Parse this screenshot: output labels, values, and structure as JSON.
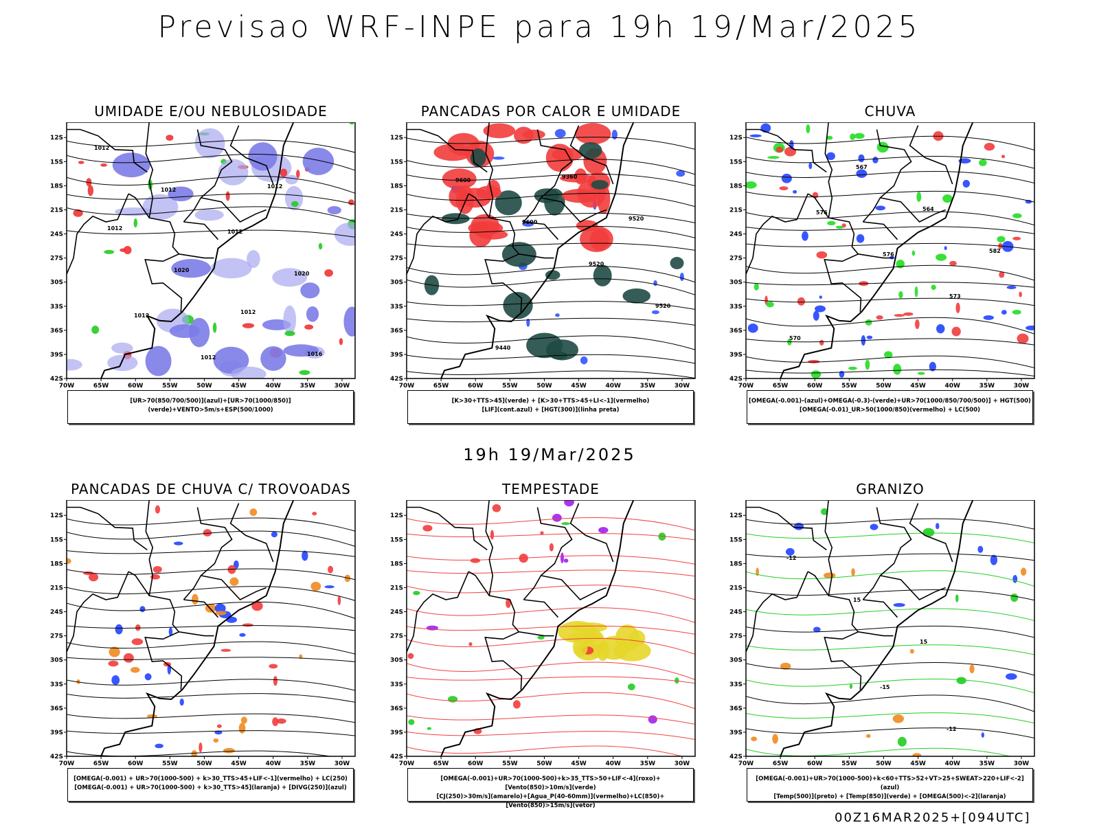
{
  "title": "Previsao WRF-INPE  para 19h 19/Mar/2025",
  "mid_label": "19h 19/Mar/2025",
  "footer": "00Z16MAR2025+[094UTC]",
  "axes": {
    "lat_ticks": [
      "12S",
      "15S",
      "18S",
      "21S",
      "24S",
      "27S",
      "30S",
      "33S",
      "36S",
      "39S",
      "42S"
    ],
    "lat_values": [
      -12,
      -15,
      -18,
      -21,
      -24,
      -27,
      -30,
      -33,
      -36,
      -39,
      -42
    ],
    "lon_ticks": [
      "70W",
      "65W",
      "60W",
      "55W",
      "50W",
      "45W",
      "40W",
      "35W",
      "30W"
    ],
    "lon_values": [
      -70,
      -65,
      -60,
      -55,
      -50,
      -45,
      -40,
      -35,
      -30
    ],
    "lat_range": [
      -42,
      -10.1
    ],
    "lon_range": [
      -70,
      -28.1
    ]
  },
  "panels": [
    {
      "title": "UMIDADE E/OU NEBULOSIDADE",
      "legend": [
        "[UR>70(850/700/500)](azul)+[UR>70(1000/850)](verde)+VENTO>5m/s+ESP(500/1000)"
      ],
      "colors": [
        "#a8a8f0",
        "#7c7ce8",
        "#22cc22",
        "#ee3333"
      ],
      "contour_labels": [
        "1012",
        "1012",
        "1012",
        "1020",
        "1012",
        "1012",
        "1012",
        "1012",
        "1020",
        "1012",
        "1016"
      ]
    },
    {
      "title": "PANCADAS POR CALOR E UMIDADE",
      "legend": [
        "[K>30+TTS>45](verde)  +  [K>30+TTS>45+LI<-1](vermelho)",
        "[LIF](cont.azul)  +  [HGT(300)](linha preta)"
      ],
      "colors": [
        "#f23c3c",
        "#1f4a44",
        "#3355ff"
      ],
      "contour_labels": [
        "9600",
        "9600",
        "9520",
        "9520",
        "9440",
        "9360",
        "9520"
      ]
    },
    {
      "title": "CHUVA",
      "legend": [
        "[OMEGA(-0.001)-(azul)+OMEGA(-0.3)-(verde)+UR>70(1000/850/700/500)]  +  HGT(500)",
        "[OMEGA(-0.01)_UR>50(1000/850)(vermelho)  +  LC(500)"
      ],
      "colors": [
        "#f23c3c",
        "#2244ff",
        "#22dd22"
      ],
      "contour_labels": [
        "576",
        "576",
        "573",
        "570",
        "567",
        "564",
        "582"
      ]
    },
    {
      "title": "PANCADAS DE CHUVA C/ TROVOADAS",
      "legend": [
        "[OMEGA(-0.001)  +  UR>70(1000-500)  +  k>30_TTS>45+LIF<-1](vermelho)  +  LC(250)",
        "[OMEGA(-0.001)  +  UR>70(1000-500)  +  k>30_TTS>45](laranja)  +  [DIVG(250)](azul)"
      ],
      "colors": [
        "#f23c3c",
        "#f08a20",
        "#2244ff"
      ],
      "contour_labels": []
    },
    {
      "title": "TEMPESTADE",
      "legend": [
        "[OMEGA(-0.001)+UR>70(1000-500)+k>35_TTS>50+LIF<-4](roxo)+[Vento(850)>10m/s](verde)",
        "[CJ(250)>30m/s](amarelo)+[Agua_P(40-60mm)](vermelho)+LC(850)+[Vento(850)>15m/s](vetor)"
      ],
      "colors": [
        "#e6d62a",
        "#f23c3c",
        "#22cc22",
        "#a020f0"
      ],
      "contour_labels": []
    },
    {
      "title": "GRANIZO",
      "legend": [
        "[OMEGA(-0.001)+UR>70(1000-500)+k<60+TTS>52+VT>25+SWEAT>220+LIF<-2](azul)",
        "[Temp(500)](preto)  +  [Temp(850)](verde)  +  [OMEGA(500)<-2](laranja)"
      ],
      "colors": [
        "#22cc22",
        "#f08a20",
        "#2244ff"
      ],
      "contour_labels": [
        "-15",
        "-12",
        "-12",
        "15",
        "15"
      ]
    }
  ]
}
